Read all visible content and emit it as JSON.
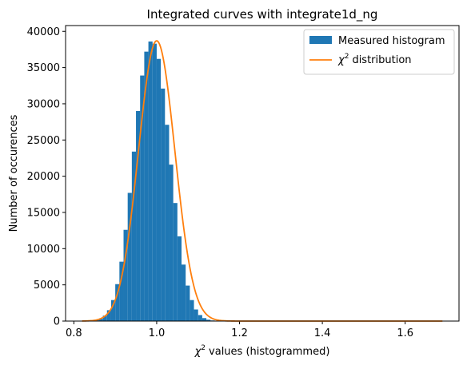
{
  "chart_data": {
    "type": "bar",
    "title": "Integrated curves with integrate1d_ng",
    "xlabel": "values (histogrammed)",
    "xlabel_symbol": "χ",
    "xlabel_sup": "2",
    "ylabel": "Number of occurences",
    "xlim": [
      0.78,
      1.73
    ],
    "ylim": [
      0,
      40800
    ],
    "x_ticks": [
      0.8,
      1.0,
      1.2,
      1.4,
      1.6
    ],
    "x_tick_labels": [
      "0.8",
      "1.0",
      "1.2",
      "1.4",
      "1.6"
    ],
    "y_ticks": [
      0,
      5000,
      10000,
      15000,
      20000,
      25000,
      30000,
      35000,
      40000
    ],
    "y_tick_labels": [
      "0",
      "5000",
      "10000",
      "15000",
      "20000",
      "25000",
      "30000",
      "35000",
      "40000"
    ],
    "grid": false,
    "legend_position": "top-right",
    "histogram": {
      "name": "Measured histogram",
      "color": "#1f77b4",
      "bin_width": 0.01,
      "bin_starts": [
        0.82,
        0.83,
        0.84,
        0.85,
        0.86,
        0.87,
        0.88,
        0.89,
        0.9,
        0.91,
        0.92,
        0.93,
        0.94,
        0.95,
        0.96,
        0.97,
        0.98,
        0.99,
        1.0,
        1.01,
        1.02,
        1.03,
        1.04,
        1.05,
        1.06,
        1.07,
        1.08,
        1.09,
        1.1,
        1.11,
        1.12,
        1.13,
        1.14,
        1.15,
        1.16,
        1.17,
        1.18,
        1.19
      ],
      "values": [
        0,
        15,
        45,
        120,
        320,
        750,
        1500,
        2900,
        5100,
        8200,
        12600,
        17700,
        23400,
        29000,
        33900,
        37200,
        38600,
        38300,
        36200,
        32100,
        27100,
        21600,
        16300,
        11700,
        7800,
        4900,
        2900,
        1600,
        830,
        410,
        190,
        85,
        35,
        15,
        6,
        2,
        1,
        0
      ]
    },
    "curve": {
      "name": "distribution",
      "name_symbol": "χ",
      "name_sup": "2",
      "color": "#ff7f0e",
      "x_range": [
        0.82,
        1.69
      ],
      "peak_x": 1.0,
      "peak_y": 38700,
      "sigma": 0.044
    }
  }
}
